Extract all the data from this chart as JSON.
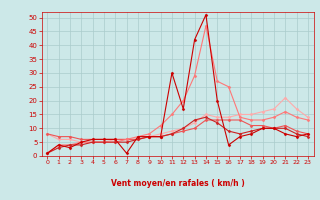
{
  "bg_color": "#cce8e8",
  "grid_color": "#aacccc",
  "xlabel": "Vent moyen/en rafales ( km/h )",
  "xlabel_color": "#cc0000",
  "tick_color": "#cc0000",
  "xlim": [
    -0.5,
    23.5
  ],
  "ylim": [
    0,
    52
  ],
  "yticks": [
    0,
    5,
    10,
    15,
    20,
    25,
    30,
    35,
    40,
    45,
    50
  ],
  "xticks": [
    0,
    1,
    2,
    3,
    4,
    5,
    6,
    7,
    8,
    9,
    10,
    11,
    12,
    13,
    14,
    15,
    16,
    17,
    18,
    19,
    20,
    21,
    22,
    23
  ],
  "series": [
    {
      "x": [
        0,
        1,
        2,
        3,
        4,
        5,
        6,
        7,
        8,
        9,
        10,
        11,
        12,
        13,
        14,
        15,
        16,
        17,
        18,
        19,
        20,
        21,
        22,
        23
      ],
      "y": [
        1,
        4,
        3,
        5,
        6,
        6,
        6,
        1,
        7,
        7,
        7,
        30,
        17,
        42,
        51,
        20,
        4,
        7,
        8,
        10,
        10,
        8,
        7,
        8
      ],
      "color": "#cc0000",
      "marker": "D",
      "markersize": 1.5,
      "linewidth": 0.8,
      "zorder": 5
    },
    {
      "x": [
        0,
        1,
        2,
        3,
        4,
        5,
        6,
        7,
        8,
        9,
        10,
        11,
        12,
        13,
        14,
        15,
        16,
        17,
        18,
        19,
        20,
        21,
        22,
        23
      ],
      "y": [
        8,
        6,
        6,
        5,
        5,
        5,
        6,
        6,
        6,
        7,
        8,
        9,
        10,
        12,
        15,
        14,
        14,
        15,
        15,
        16,
        17,
        21,
        17,
        14
      ],
      "color": "#ffaaaa",
      "marker": "D",
      "markersize": 1.5,
      "linewidth": 0.8,
      "zorder": 3
    },
    {
      "x": [
        0,
        1,
        2,
        3,
        4,
        5,
        6,
        7,
        8,
        9,
        10,
        11,
        12,
        13,
        14,
        15,
        16,
        17,
        18,
        19,
        20,
        21,
        22,
        23
      ],
      "y": [
        1,
        4,
        4,
        5,
        5,
        5,
        5,
        6,
        7,
        8,
        11,
        15,
        20,
        29,
        47,
        27,
        25,
        14,
        13,
        13,
        14,
        16,
        14,
        13
      ],
      "color": "#ff7777",
      "marker": "D",
      "markersize": 1.5,
      "linewidth": 0.8,
      "zorder": 4
    },
    {
      "x": [
        0,
        1,
        2,
        3,
        4,
        5,
        6,
        7,
        8,
        9,
        10,
        11,
        12,
        13,
        14,
        15,
        16,
        17,
        18,
        19,
        20,
        21,
        22,
        23
      ],
      "y": [
        8,
        7,
        7,
        6,
        6,
        6,
        6,
        6,
        6,
        7,
        7,
        8,
        9,
        10,
        13,
        13,
        13,
        13,
        11,
        11,
        10,
        11,
        9,
        8
      ],
      "color": "#ee5555",
      "marker": "D",
      "markersize": 1.5,
      "linewidth": 0.8,
      "zorder": 3
    },
    {
      "x": [
        0,
        1,
        2,
        3,
        4,
        5,
        6,
        7,
        8,
        9,
        10,
        11,
        12,
        13,
        14,
        15,
        16,
        17,
        18,
        19,
        20,
        21,
        22,
        23
      ],
      "y": [
        1,
        3,
        4,
        4,
        5,
        5,
        5,
        5,
        6,
        7,
        7,
        8,
        10,
        13,
        14,
        12,
        9,
        8,
        9,
        10,
        10,
        10,
        8,
        7
      ],
      "color": "#cc2222",
      "marker": "D",
      "markersize": 1.5,
      "linewidth": 0.8,
      "zorder": 4
    }
  ]
}
